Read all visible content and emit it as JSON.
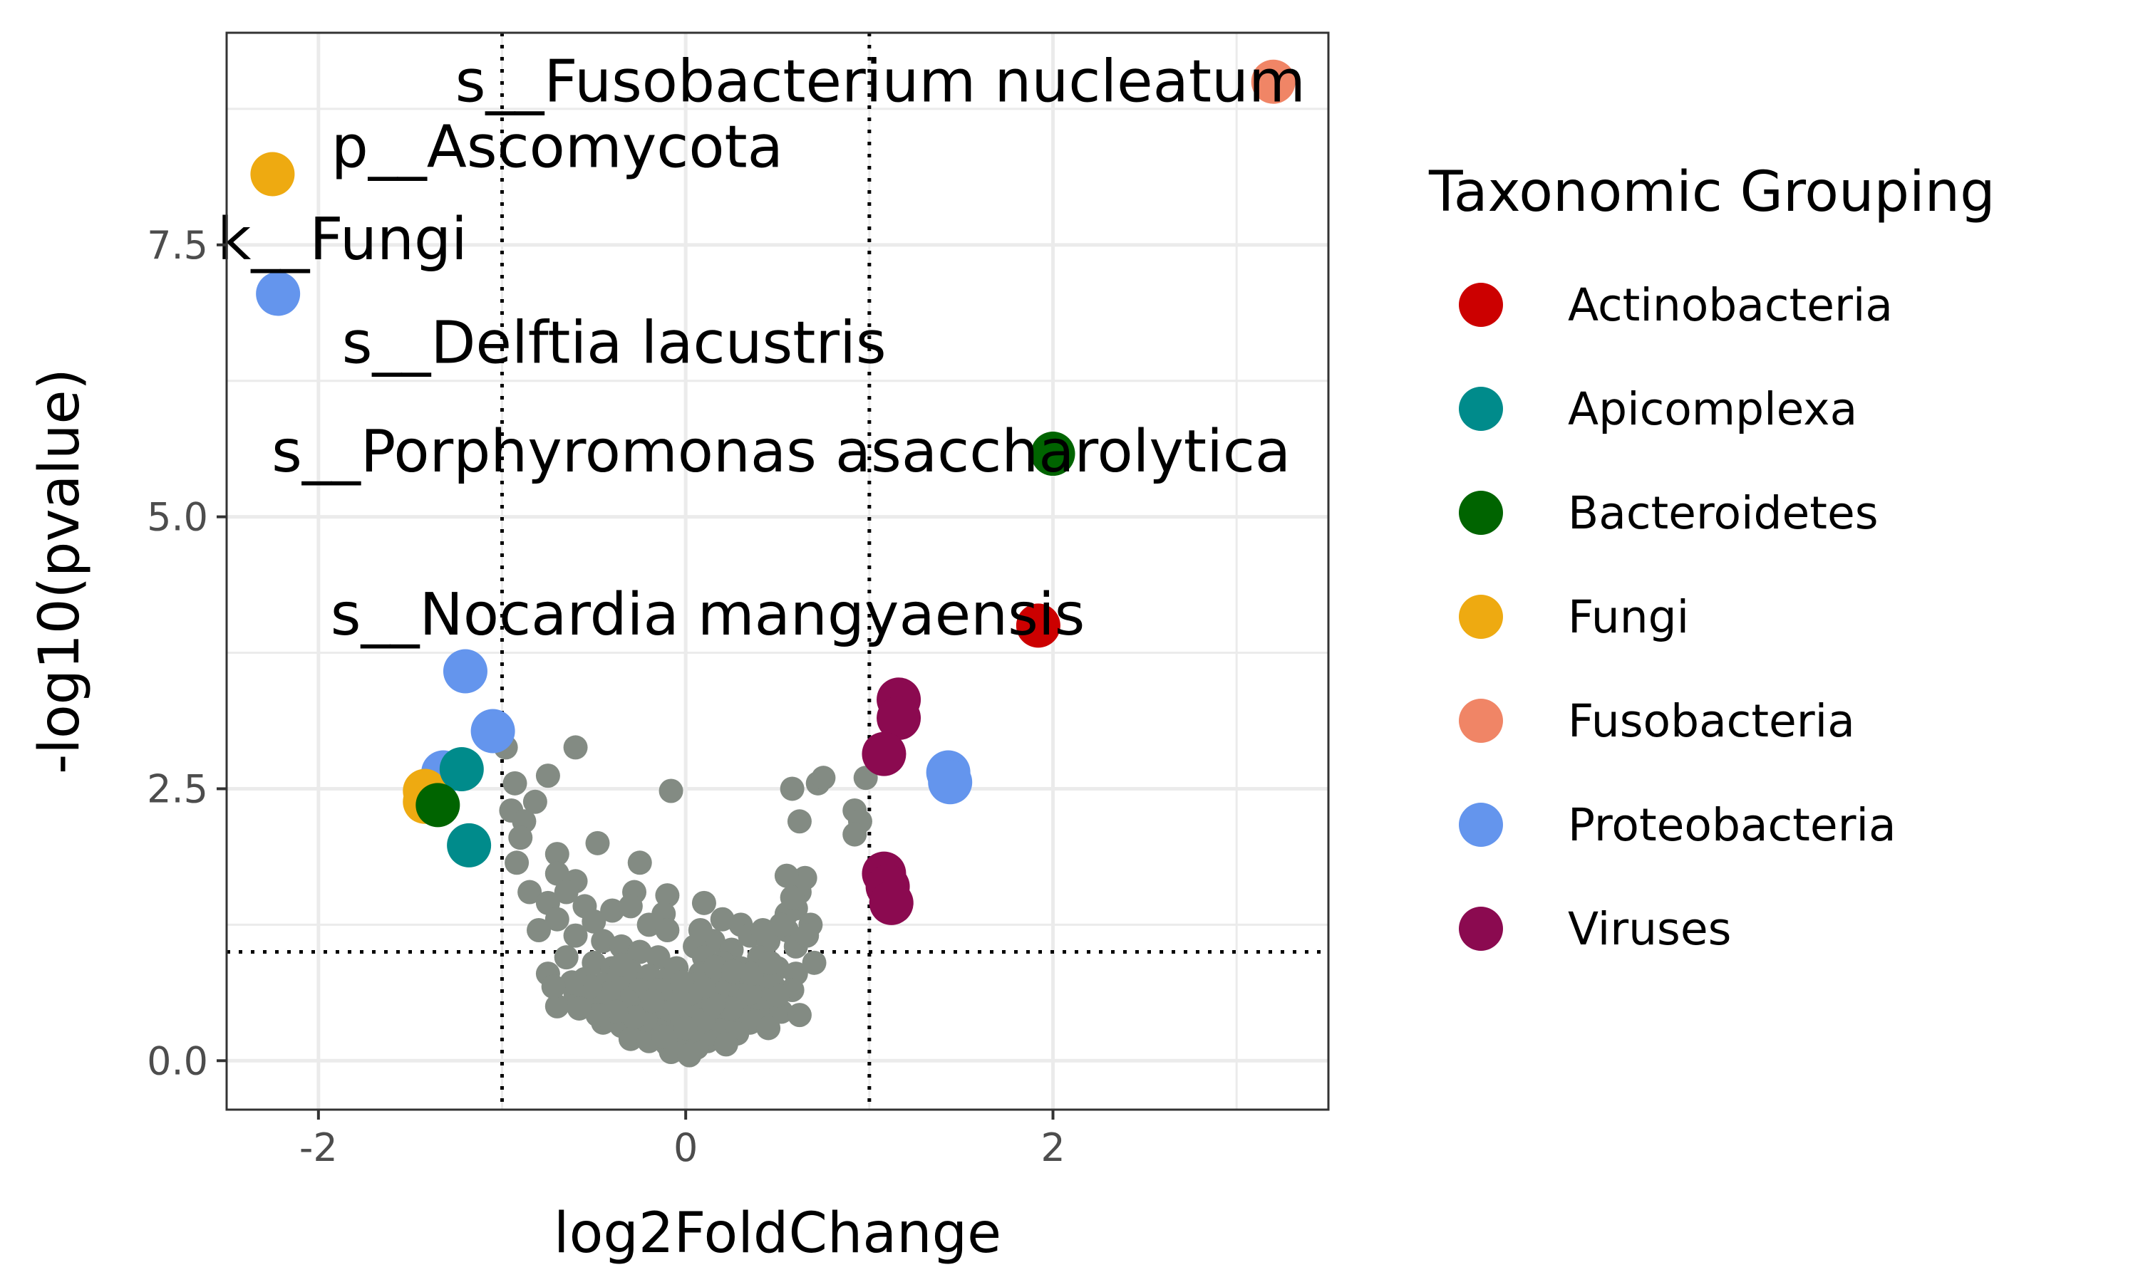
{
  "chart_data": {
    "type": "scatter",
    "xlabel": "log2FoldChange",
    "ylabel": "-log10(pvalue)",
    "xlim": [
      -2.5,
      3.5
    ],
    "ylim": [
      -0.45,
      9.45
    ],
    "xticks": [
      -2,
      0,
      2
    ],
    "yticks": [
      0.0,
      2.5,
      5.0,
      7.5
    ],
    "xtick_labels": [
      "-2",
      "0",
      "2"
    ],
    "ytick_labels": [
      "0.0",
      "2.5",
      "5.0",
      "7.5"
    ],
    "grid": true,
    "thresholds": {
      "x": [
        -1,
        1
      ],
      "y": 1
    },
    "legend": {
      "title": "Taxonomic Grouping",
      "placement": "right",
      "entries": [
        {
          "name": "Actinobacteria",
          "color": "#cc0000"
        },
        {
          "name": "Apicomplexa",
          "color": "#008b8b"
        },
        {
          "name": "Bacteroidetes",
          "color": "#006400"
        },
        {
          "name": "Fungi",
          "color": "#eeaa11"
        },
        {
          "name": "Fusobacteria",
          "color": "#f08566"
        },
        {
          "name": "Proteobacteria",
          "color": "#6495ed"
        },
        {
          "name": "Viruses",
          "color": "#8b0a50"
        }
      ]
    },
    "background_color": "#838b83",
    "background_points": [
      [
        -0.98,
        2.88
      ],
      [
        -0.6,
        2.88
      ],
      [
        -0.75,
        2.62
      ],
      [
        -0.93,
        2.55
      ],
      [
        -0.82,
        2.38
      ],
      [
        -0.95,
        2.3
      ],
      [
        -0.88,
        2.2
      ],
      [
        -0.9,
        2.05
      ],
      [
        -0.48,
        2.0
      ],
      [
        -0.7,
        1.9
      ],
      [
        -0.92,
        1.82
      ],
      [
        -0.25,
        1.82
      ],
      [
        -0.7,
        1.72
      ],
      [
        -0.6,
        1.65
      ],
      [
        -0.85,
        1.55
      ],
      [
        -0.65,
        1.55
      ],
      [
        -0.28,
        1.55
      ],
      [
        -0.1,
        1.52
      ],
      [
        -0.75,
        1.45
      ],
      [
        -0.55,
        1.42
      ],
      [
        -0.4,
        1.38
      ],
      [
        -0.3,
        1.42
      ],
      [
        -0.12,
        1.35
      ],
      [
        -0.7,
        1.3
      ],
      [
        -0.5,
        1.28
      ],
      [
        -0.2,
        1.25
      ],
      [
        -0.1,
        1.2
      ],
      [
        -0.8,
        1.2
      ],
      [
        -0.6,
        1.15
      ],
      [
        -0.45,
        1.1
      ],
      [
        -0.35,
        1.05
      ],
      [
        -0.25,
        1.0
      ],
      [
        -0.15,
        0.95
      ],
      [
        -0.65,
        0.95
      ],
      [
        -0.5,
        0.9
      ],
      [
        -0.4,
        0.85
      ],
      [
        -0.3,
        0.82
      ],
      [
        -0.2,
        0.78
      ],
      [
        -0.1,
        0.75
      ],
      [
        -0.75,
        0.8
      ],
      [
        -0.55,
        0.75
      ],
      [
        -0.45,
        0.7
      ],
      [
        -0.35,
        0.68
      ],
      [
        -0.25,
        0.65
      ],
      [
        -0.15,
        0.6
      ],
      [
        -0.05,
        0.58
      ],
      [
        -0.6,
        0.62
      ],
      [
        -0.5,
        0.55
      ],
      [
        -0.4,
        0.5
      ],
      [
        -0.3,
        0.48
      ],
      [
        -0.2,
        0.45
      ],
      [
        -0.1,
        0.42
      ],
      [
        -0.7,
        0.5
      ],
      [
        -0.45,
        0.35
      ],
      [
        -0.35,
        0.32
      ],
      [
        -0.25,
        0.3
      ],
      [
        -0.15,
        0.28
      ],
      [
        -0.05,
        0.25
      ],
      [
        -0.3,
        0.2
      ],
      [
        -0.2,
        0.18
      ],
      [
        -0.1,
        0.15
      ],
      [
        -0.02,
        0.1
      ],
      [
        -0.08,
        0.08
      ],
      [
        -0.12,
        0.22
      ],
      [
        -0.22,
        0.38
      ],
      [
        -0.32,
        0.55
      ],
      [
        -0.42,
        0.62
      ],
      [
        -0.52,
        0.68
      ],
      [
        -0.62,
        0.72
      ],
      [
        -0.72,
        0.68
      ],
      [
        -0.35,
        0.88
      ],
      [
        -0.05,
        0.85
      ],
      [
        -0.02,
        0.35
      ],
      [
        -0.06,
        0.52
      ],
      [
        -0.14,
        0.65
      ],
      [
        -0.18,
        0.55
      ],
      [
        -0.28,
        0.4
      ],
      [
        -0.38,
        0.45
      ],
      [
        -0.48,
        0.42
      ],
      [
        -0.58,
        0.48
      ],
      [
        -0.08,
        2.48
      ],
      [
        0.1,
        1.45
      ],
      [
        0.2,
        1.3
      ],
      [
        0.3,
        1.25
      ],
      [
        0.15,
        1.1
      ],
      [
        0.05,
        1.05
      ],
      [
        0.25,
        1.02
      ],
      [
        0.35,
        1.15
      ],
      [
        0.45,
        1.1
      ],
      [
        0.1,
        0.95
      ],
      [
        0.2,
        0.9
      ],
      [
        0.3,
        0.85
      ],
      [
        0.4,
        0.95
      ],
      [
        0.5,
        0.85
      ],
      [
        0.6,
        0.8
      ],
      [
        0.08,
        0.8
      ],
      [
        0.18,
        0.75
      ],
      [
        0.28,
        0.72
      ],
      [
        0.38,
        0.7
      ],
      [
        0.48,
        0.68
      ],
      [
        0.58,
        0.65
      ],
      [
        0.05,
        0.7
      ],
      [
        0.12,
        0.6
      ],
      [
        0.22,
        0.55
      ],
      [
        0.32,
        0.5
      ],
      [
        0.42,
        0.48
      ],
      [
        0.52,
        0.45
      ],
      [
        0.62,
        0.42
      ],
      [
        0.7,
        0.9
      ],
      [
        0.05,
        0.5
      ],
      [
        0.15,
        0.42
      ],
      [
        0.25,
        0.38
      ],
      [
        0.35,
        0.35
      ],
      [
        0.45,
        0.3
      ],
      [
        0.08,
        0.32
      ],
      [
        0.18,
        0.28
      ],
      [
        0.28,
        0.25
      ],
      [
        0.02,
        0.2
      ],
      [
        0.12,
        0.18
      ],
      [
        0.22,
        0.15
      ],
      [
        0.06,
        0.12
      ],
      [
        0.02,
        0.05
      ],
      [
        0.04,
        0.28
      ],
      [
        0.1,
        0.38
      ],
      [
        0.2,
        0.62
      ],
      [
        0.3,
        0.6
      ],
      [
        0.4,
        0.58
      ],
      [
        0.5,
        0.6
      ],
      [
        0.55,
        1.2
      ],
      [
        0.6,
        1.4
      ],
      [
        0.55,
        1.35
      ],
      [
        0.62,
        1.55
      ],
      [
        0.58,
        1.5
      ],
      [
        0.65,
        1.68
      ],
      [
        0.55,
        1.7
      ],
      [
        0.68,
        1.25
      ],
      [
        0.52,
        1.25
      ],
      [
        0.42,
        1.2
      ],
      [
        0.6,
        1.05
      ],
      [
        0.45,
        0.78
      ],
      [
        0.35,
        0.62
      ],
      [
        0.25,
        0.48
      ],
      [
        0.15,
        0.52
      ],
      [
        0.58,
        2.5
      ],
      [
        0.72,
        2.55
      ],
      [
        0.75,
        2.6
      ],
      [
        0.62,
        2.2
      ],
      [
        0.92,
        2.3
      ],
      [
        0.95,
        2.2
      ],
      [
        0.92,
        2.08
      ],
      [
        0.98,
        2.6
      ],
      [
        0.1,
        0.68
      ],
      [
        0.03,
        0.62
      ],
      [
        -0.02,
        0.72
      ],
      [
        0.0,
        0.3
      ],
      [
        0.16,
        0.86
      ],
      [
        0.26,
        0.82
      ],
      [
        0.36,
        0.8
      ],
      [
        0.46,
        0.9
      ],
      [
        0.66,
        1.15
      ],
      [
        0.08,
        1.2
      ]
    ],
    "highlight_points": [
      {
        "x": 3.2,
        "y": 9.0,
        "group": "Fusobacteria"
      },
      {
        "x": -2.25,
        "y": 8.15,
        "group": "Fungi"
      },
      {
        "x": -2.22,
        "y": 7.05,
        "group": "Proteobacteria"
      },
      {
        "x": 2.0,
        "y": 5.58,
        "group": "Bacteroidetes"
      },
      {
        "x": 1.92,
        "y": 4.0,
        "group": "Actinobacteria"
      },
      {
        "x": -1.2,
        "y": 3.58,
        "group": "Proteobacteria"
      },
      {
        "x": -1.05,
        "y": 3.03,
        "group": "Proteobacteria"
      },
      {
        "x": -1.32,
        "y": 2.65,
        "group": "Proteobacteria"
      },
      {
        "x": 1.43,
        "y": 2.65,
        "group": "Proteobacteria"
      },
      {
        "x": 1.44,
        "y": 2.56,
        "group": "Proteobacteria"
      },
      {
        "x": -1.42,
        "y": 2.48,
        "group": "Fungi"
      },
      {
        "x": -1.42,
        "y": 2.38,
        "group": "Fungi"
      },
      {
        "x": -1.22,
        "y": 2.68,
        "group": "Apicomplexa"
      },
      {
        "x": -1.18,
        "y": 1.98,
        "group": "Apicomplexa"
      },
      {
        "x": -1.35,
        "y": 2.35,
        "group": "Bacteroidetes"
      },
      {
        "x": 1.16,
        "y": 3.32,
        "group": "Viruses"
      },
      {
        "x": 1.16,
        "y": 3.15,
        "group": "Viruses"
      },
      {
        "x": 1.08,
        "y": 2.82,
        "group": "Viruses"
      },
      {
        "x": 1.08,
        "y": 1.72,
        "group": "Viruses"
      },
      {
        "x": 1.1,
        "y": 1.6,
        "group": "Viruses"
      },
      {
        "x": 1.12,
        "y": 1.45,
        "group": "Viruses"
      }
    ],
    "point_labels": [
      {
        "text": "s__Fusobacterium nucleatum",
        "x": 1.06,
        "y": 9.0
      },
      {
        "text": "p__Ascomycota",
        "x": -0.7,
        "y": 8.4
      },
      {
        "text": "k__Fungi",
        "x": -1.87,
        "y": 7.55
      },
      {
        "text": "s__Delftia lacustris",
        "x": -0.39,
        "y": 6.6
      },
      {
        "text": "s__Porphyromonas asaccharolytica",
        "x": 0.52,
        "y": 5.6
      },
      {
        "text": "s__Nocardia mangyaensis",
        "x": 0.12,
        "y": 4.1
      }
    ]
  }
}
